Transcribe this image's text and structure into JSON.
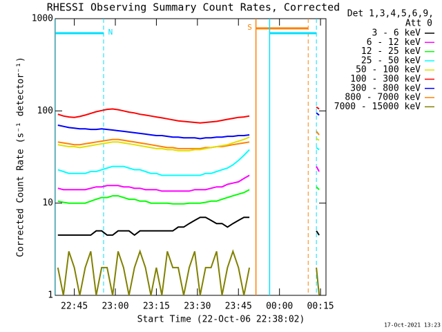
{
  "chart_data": {
    "type": "line",
    "title": "RHESSI Observing Summary Count Rates, Corrected",
    "x_label": "Start Time (22-Oct-06 22:38:02)",
    "y_label": "Corrected Count Rate (s⁻¹ detector⁻¹)",
    "legend_header": [
      "Det 1,3,4,5,6,9,",
      "Att 0"
    ],
    "footer": "17-Oct-2021 13:23",
    "log_scale_y": true,
    "xlim": [
      38.03,
      137
    ],
    "ylim": [
      1,
      1000
    ],
    "yticks": [
      1,
      10,
      100,
      1000
    ],
    "xticks": [
      {
        "value": 45,
        "label": "22:45"
      },
      {
        "value": 60,
        "label": "23:00"
      },
      {
        "value": 75,
        "label": "23:15"
      },
      {
        "value": 90,
        "label": "23:30"
      },
      {
        "value": 105,
        "label": "23:45"
      },
      {
        "value": 120,
        "label": "00:00"
      },
      {
        "value": 135,
        "label": "00:15"
      }
    ],
    "x": [
      39,
      41,
      43,
      45,
      47,
      49,
      51,
      53,
      55,
      57,
      59,
      61,
      63,
      65,
      67,
      69,
      71,
      73,
      75,
      77,
      79,
      81,
      83,
      85,
      87,
      89,
      91,
      93,
      95,
      97,
      99,
      101,
      103,
      105,
      107,
      109,
      122,
      133.5,
      134.5
    ],
    "flags": [
      {
        "label": "N",
        "color": "#00e0ff",
        "start": 38.03,
        "end": 55.7
      },
      {
        "label": "S",
        "color": "#ff8000",
        "start": 111.4,
        "end": 130.5
      },
      {
        "label": null,
        "color": "#00e0ff",
        "start": 116.4,
        "end": 133.5
      }
    ],
    "series": [
      {
        "name": "3 - 6 keV",
        "color": "#000000",
        "values": [
          4.5,
          4.5,
          4.5,
          4.5,
          4.5,
          4.5,
          4.5,
          5,
          5,
          4.5,
          4.5,
          5,
          5,
          5,
          4.5,
          5,
          5,
          5,
          5,
          5,
          5,
          5,
          5.5,
          5.5,
          6,
          6.5,
          7,
          7,
          6.5,
          6,
          6,
          5.5,
          6,
          6.5,
          7,
          7,
          null,
          5,
          4.5
        ]
      },
      {
        "name": "6 - 12 keV",
        "color": "#ff00ff",
        "values": [
          14.5,
          14,
          14,
          14,
          14,
          14,
          14.5,
          15,
          15,
          15.5,
          15.5,
          15.5,
          15,
          15,
          14.5,
          14.5,
          14,
          14,
          14,
          13.5,
          13.5,
          13.5,
          13.5,
          13.5,
          13.5,
          14,
          14,
          14,
          14.5,
          15,
          15,
          16,
          16.5,
          17,
          18.5,
          20,
          null,
          25,
          22
        ]
      },
      {
        "name": "12 - 25 keV",
        "color": "#00ff00",
        "values": [
          10.5,
          10.2,
          10,
          10,
          10,
          10,
          10.5,
          11,
          11.5,
          11.5,
          12,
          12,
          11.5,
          11,
          11,
          10.5,
          10.5,
          10,
          10,
          10,
          10,
          9.8,
          9.8,
          9.8,
          10,
          10,
          10,
          10.2,
          10.5,
          10.5,
          11,
          11.5,
          12,
          12.5,
          13,
          14,
          null,
          15,
          14
        ]
      },
      {
        "name": "25 - 50 keV",
        "color": "#00ffff",
        "values": [
          23,
          22,
          21,
          21,
          21,
          21,
          22,
          22,
          23,
          24,
          25,
          25,
          25,
          24,
          23,
          23,
          22,
          21,
          21,
          20,
          20,
          20,
          20,
          20,
          20,
          20,
          20,
          21,
          21,
          22,
          23,
          24,
          26,
          29,
          33,
          38,
          null,
          40,
          38
        ]
      },
      {
        "name": "50 - 100 keV",
        "color": "#e0e000",
        "values": [
          43,
          42,
          41,
          41,
          40,
          41,
          42,
          43,
          44,
          45,
          46,
          46,
          45,
          44,
          43,
          42,
          41,
          40,
          39,
          39,
          38,
          38,
          37,
          37,
          37,
          38,
          38,
          39,
          40,
          41,
          42,
          43,
          45,
          47,
          49,
          52,
          null,
          50,
          48
        ]
      },
      {
        "name": "100 - 300 keV",
        "color": "#ff0000",
        "values": [
          92,
          88,
          86,
          85,
          87,
          90,
          94,
          98,
          101,
          104,
          105,
          103,
          100,
          97,
          95,
          92,
          90,
          88,
          86,
          84,
          82,
          80,
          78,
          77,
          76,
          75,
          74,
          75,
          76,
          77,
          79,
          81,
          83,
          85,
          86,
          88,
          null,
          110,
          105
        ]
      },
      {
        "name": "300 - 800 keV",
        "color": "#0000ff",
        "values": [
          70,
          68,
          66,
          65,
          64,
          64,
          63,
          63,
          64,
          63,
          62,
          61,
          60,
          59,
          58,
          57,
          56,
          55,
          54,
          54,
          53,
          52,
          52,
          51,
          51,
          51,
          50,
          51,
          51,
          52,
          52,
          53,
          53,
          54,
          54,
          55,
          null,
          95,
          90
        ]
      },
      {
        "name": "800 - 7000 keV",
        "color": "#ff8000",
        "values": [
          46,
          45,
          44,
          43,
          43,
          44,
          45,
          46,
          47,
          48,
          49,
          49,
          48,
          47,
          46,
          45,
          44,
          43,
          42,
          41,
          40,
          40,
          39,
          39,
          39,
          39,
          39,
          40,
          40,
          41,
          41,
          42,
          43,
          44,
          45,
          46,
          null,
          60,
          55
        ]
      },
      {
        "name": "7000 - 15000 keV",
        "color": "#808000",
        "values": [
          2,
          1,
          3,
          2,
          1,
          2,
          3,
          1,
          2,
          2,
          1,
          3,
          2,
          1,
          2,
          3,
          2,
          1,
          2,
          1,
          3,
          2,
          2,
          1,
          2,
          3,
          1,
          2,
          2,
          3,
          1,
          2,
          3,
          2,
          1,
          2,
          null,
          2,
          1
        ]
      }
    ]
  }
}
